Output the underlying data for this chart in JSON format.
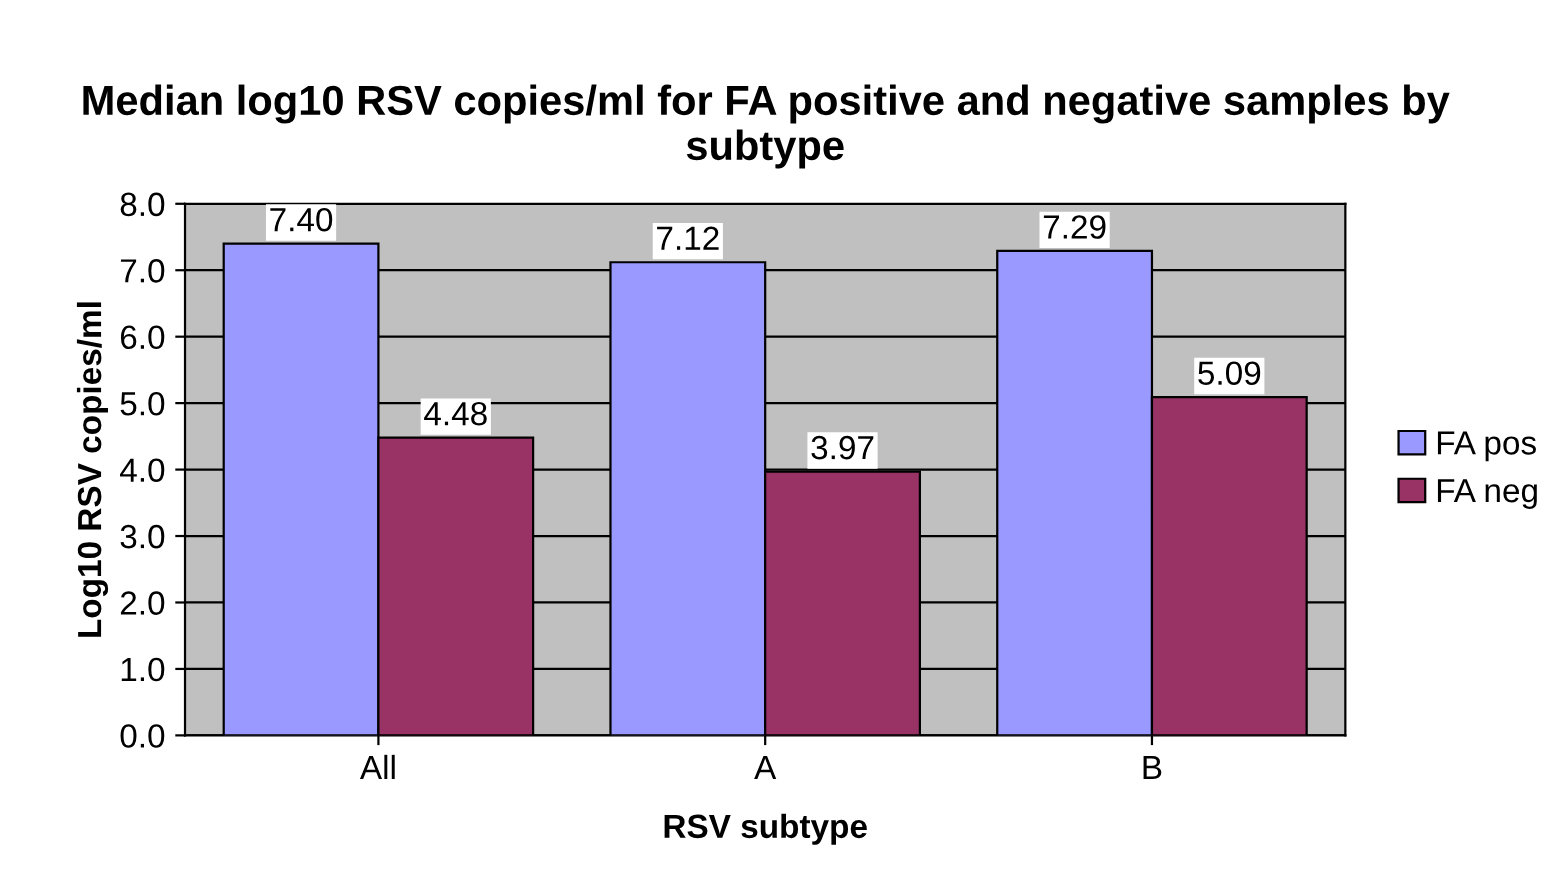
{
  "chart_data": {
    "type": "bar",
    "title": "Median log10 RSV copies/ml for FA positive and negative samples by subtype",
    "xlabel": "RSV subtype",
    "ylabel": "Log10 RSV copies/ml",
    "categories": [
      "All",
      "A",
      "B"
    ],
    "series": [
      {
        "name": "FA pos",
        "color": "#9999ff",
        "values": [
          7.4,
          7.12,
          7.29
        ],
        "value_labels": [
          "7.40",
          "7.12",
          "7.29"
        ]
      },
      {
        "name": "FA neg",
        "color": "#993366",
        "values": [
          4.48,
          3.97,
          5.09
        ],
        "value_labels": [
          "4.48",
          "3.97",
          "5.09"
        ]
      }
    ],
    "ylim": [
      0,
      8
    ],
    "yticks": [
      {
        "value": 0,
        "label": "0.0"
      },
      {
        "value": 1,
        "label": "1.0"
      },
      {
        "value": 2,
        "label": "2.0"
      },
      {
        "value": 3,
        "label": "3.0"
      },
      {
        "value": 4,
        "label": "4.0"
      },
      {
        "value": 5,
        "label": "5.0"
      },
      {
        "value": 6,
        "label": "6.0"
      },
      {
        "value": 7,
        "label": "7.0"
      },
      {
        "value": 8,
        "label": "8.0"
      }
    ],
    "grid": "y",
    "legend": "right"
  }
}
